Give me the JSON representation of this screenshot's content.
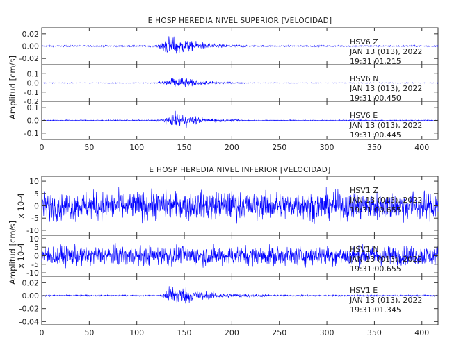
{
  "chart_data": [
    {
      "type": "line",
      "title": "E HOSP HEREDIA NIVEL SUPERIOR [VELOCIDAD]",
      "ylabel": "Amplitud [cm/s]",
      "xlim": [
        0,
        417
      ],
      "xticks": [
        0,
        50,
        100,
        150,
        200,
        250,
        300,
        350,
        400
      ],
      "xticklabels": [
        "0",
        "50",
        "100",
        "150",
        "200",
        "250",
        "300",
        "350",
        "400"
      ],
      "line_color": "#0000ff",
      "traces": [
        {
          "ylim": [
            -0.03,
            0.03
          ],
          "yticks": [
            0.02,
            0.0,
            -0.02
          ],
          "yticklabels": [
            "0.02",
            "0.00",
            "-0.02"
          ],
          "annotation": [
            "HSV6   Z",
            "JAN 13 (013), 2022",
            "19:31:01.215"
          ],
          "noise": 0.0008,
          "events": [
            {
              "start": 120,
              "peak": 135,
              "end": 215,
              "amp": 0.014
            }
          ]
        },
        {
          "ylim": [
            -0.2,
            0.2
          ],
          "yticks": [
            0.1,
            0.0,
            -0.1,
            -0.2
          ],
          "yticklabels": [
            "0.1",
            "0.0",
            "-0.1",
            "-0.2"
          ],
          "annotation": [
            "HSV6   N",
            "JAN 13 (013), 2022",
            "19:31:00.450"
          ],
          "noise": 0.003,
          "events": [
            {
              "start": 120,
              "peak": 142,
              "end": 215,
              "amp": 0.055
            }
          ]
        },
        {
          "ylim": [
            -0.15,
            0.15
          ],
          "yticks": [
            0.1,
            0.0,
            -0.1
          ],
          "yticklabels": [
            "0.1",
            "0.0",
            "-0.1"
          ],
          "annotation": [
            "HSV6   E",
            "JAN 13 (013), 2022",
            "19:31:00.445"
          ],
          "noise": 0.003,
          "events": [
            {
              "start": 120,
              "peak": 145,
              "end": 215,
              "amp": 0.045
            }
          ]
        }
      ]
    },
    {
      "type": "line",
      "title": "E HOSP HEREDIA NIVEL INFERIOR [VELOCIDAD]",
      "ylabel": "Amplitud [cm/s]",
      "xlim": [
        0,
        417
      ],
      "xticks": [
        0,
        50,
        100,
        150,
        200,
        250,
        300,
        350,
        400
      ],
      "xticklabels": [
        "0",
        "50",
        "100",
        "150",
        "200",
        "250",
        "300",
        "350",
        "400"
      ],
      "line_color": "#0000ff",
      "traces": [
        {
          "ylim": [
            -12,
            12
          ],
          "yticks": [
            10,
            5,
            0,
            -5,
            -10
          ],
          "yticklabels": [
            "10",
            "5",
            "0",
            "-5",
            "-10"
          ],
          "scale_label": "x 10-4",
          "annotation": [
            "HSV1   Z",
            "JAN 13 (013), 2022",
            "19:31:00.655"
          ],
          "noise": 4.0,
          "events": []
        },
        {
          "ylim": [
            -12,
            12
          ],
          "yticks": [
            10,
            5,
            0,
            -5,
            -10
          ],
          "yticklabels": [
            "10",
            "5",
            "0",
            "-5",
            "-10"
          ],
          "scale_label": "x 10-4",
          "annotation": [
            "HSV1   N",
            "JAN 13 (013), 2022",
            "19:31:00.655"
          ],
          "noise": 4.0,
          "events": []
        },
        {
          "ylim": [
            -0.045,
            0.03
          ],
          "yticks": [
            0.02,
            0.0,
            -0.02,
            -0.04
          ],
          "yticklabels": [
            "0.02",
            "0.00",
            "-0.02",
            "-0.04"
          ],
          "annotation": [
            "HSV1   E",
            "JAN 13 (013), 2022",
            "19:31:01.345"
          ],
          "noise": 0.0008,
          "events": [
            {
              "start": 125,
              "peak": 138,
              "end": 240,
              "amp": 0.013
            }
          ]
        }
      ]
    }
  ]
}
